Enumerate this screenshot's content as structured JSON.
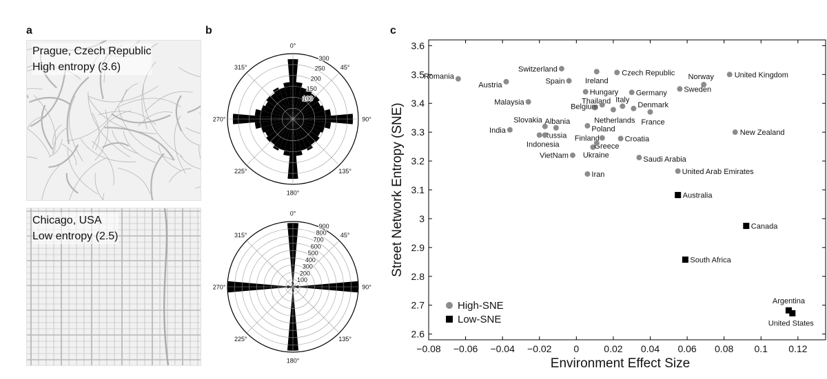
{
  "panels": {
    "a": {
      "letter": "a",
      "maps": [
        {
          "title": "Prague, Czech Republic",
          "subtitle": "High entropy (3.6)",
          "kind": "organic"
        },
        {
          "title": "Chicago, USA",
          "subtitle": "Low entropy (2.5)",
          "kind": "grid"
        }
      ]
    },
    "b": {
      "letter": "b",
      "angle_labels": [
        "0°",
        "45°",
        "90°",
        "135°",
        "180°",
        "225°",
        "270°",
        "315°"
      ],
      "polar_top": {
        "radial_ticks": [
          "100",
          "150",
          "200",
          "250",
          "300"
        ],
        "rmax": 300,
        "rings": [
          50,
          100,
          150,
          200,
          250,
          300
        ],
        "bins_deg": 10,
        "values": [
          275,
          170,
          150,
          160,
          145,
          150,
          140,
          150,
          175,
          275,
          175,
          150,
          140,
          150,
          145,
          160,
          150,
          170,
          275,
          170,
          150,
          160,
          145,
          150,
          140,
          150,
          175,
          275,
          175,
          150,
          140,
          150,
          145,
          160,
          150,
          170
        ]
      },
      "polar_bottom": {
        "radial_ticks": [
          "100",
          "200",
          "300",
          "400",
          "500",
          "600",
          "700",
          "800",
          "900"
        ],
        "rmax": 900,
        "rings": [
          100,
          200,
          300,
          400,
          500,
          600,
          700,
          800,
          900
        ],
        "bins_deg": 10,
        "values": [
          880,
          60,
          30,
          15,
          10,
          15,
          20,
          40,
          80,
          900,
          80,
          30,
          15,
          10,
          12,
          25,
          35,
          70,
          880,
          60,
          30,
          15,
          10,
          15,
          20,
          40,
          80,
          900,
          80,
          30,
          15,
          10,
          12,
          25,
          35,
          70
        ]
      }
    },
    "c": {
      "letter": "c"
    }
  },
  "chart_data": {
    "type": "scatter",
    "xlabel": "Environment Effect Size",
    "ylabel": "Street Network Entropy (SNE)",
    "xlim": [
      -0.08,
      0.135
    ],
    "ylim": [
      2.58,
      3.62
    ],
    "x_ticks": [
      -0.08,
      -0.06,
      -0.04,
      -0.02,
      0,
      0.02,
      0.04,
      0.06,
      0.08,
      0.1,
      0.12
    ],
    "x_tick_labels": [
      "−0.08",
      "−0.06",
      "−0.04",
      "−0.02",
      "0",
      "0.02",
      "0.04",
      "0.06",
      "0.08",
      "0.1",
      "0.12"
    ],
    "y_ticks": [
      2.6,
      2.7,
      2.8,
      2.9,
      3.0,
      3.1,
      3.2,
      3.3,
      3.4,
      3.5,
      3.6
    ],
    "y_tick_labels": [
      "2.6",
      "2.7",
      "2.8",
      "2.9",
      "3",
      "3.1",
      "3.2",
      "3.3",
      "3.4",
      "3.5",
      "3.6"
    ],
    "legend_placement": "bottom-left",
    "series": [
      {
        "name": "High-SNE",
        "marker": "circle",
        "color": "#8c8c8c",
        "points": [
          {
            "label": "Romania",
            "x": -0.064,
            "y": 3.485,
            "anchor": "end",
            "dx": -6,
            "dy": -4
          },
          {
            "label": "Austria",
            "x": -0.038,
            "y": 3.475,
            "anchor": "end",
            "dx": -6,
            "dy": 4
          },
          {
            "label": "Switzerland",
            "x": -0.008,
            "y": 3.52,
            "anchor": "end",
            "dx": -6,
            "dy": 0
          },
          {
            "label": "Spain",
            "x": -0.004,
            "y": 3.478,
            "anchor": "end",
            "dx": -6,
            "dy": 0
          },
          {
            "label": "Ireland",
            "x": 0.011,
            "y": 3.51,
            "anchor": "middle",
            "dx": 0,
            "dy": 13
          },
          {
            "label": "Czech Republic",
            "x": 0.022,
            "y": 3.507,
            "anchor": "start",
            "dx": 7,
            "dy": 0
          },
          {
            "label": "Norway",
            "x": 0.069,
            "y": 3.465,
            "anchor": "middle",
            "dx": -4,
            "dy": -12
          },
          {
            "label": "United Kingdom",
            "x": 0.083,
            "y": 3.5,
            "anchor": "start",
            "dx": 7,
            "dy": 0
          },
          {
            "label": "Sweden",
            "x": 0.056,
            "y": 3.45,
            "anchor": "start",
            "dx": 6,
            "dy": 0
          },
          {
            "label": "Malaysia",
            "x": -0.026,
            "y": 3.405,
            "anchor": "end",
            "dx": -6,
            "dy": 0
          },
          {
            "label": "Hungary",
            "x": 0.005,
            "y": 3.44,
            "anchor": "start",
            "dx": 6,
            "dy": 0
          },
          {
            "label": "Germany",
            "x": 0.03,
            "y": 3.438,
            "anchor": "start",
            "dx": 6,
            "dy": 0
          },
          {
            "label": "Thailand",
            "x": 0.01,
            "y": 3.385,
            "anchor": "middle",
            "dx": 2,
            "dy": -10
          },
          {
            "label": "Italy",
            "x": 0.025,
            "y": 3.39,
            "anchor": "middle",
            "dx": 0,
            "dy": -10
          },
          {
            "label": "Belgium",
            "x": 0.014,
            "y": 3.395,
            "anchor": "end",
            "dx": -6,
            "dy": 2
          },
          {
            "label": "Denmark",
            "x": 0.031,
            "y": 3.382,
            "anchor": "start",
            "dx": 6,
            "dy": -6
          },
          {
            "label": "France",
            "x": 0.04,
            "y": 3.37,
            "anchor": "middle",
            "dx": 4,
            "dy": 14
          },
          {
            "label": "Netherlands",
            "x": 0.02,
            "y": 3.378,
            "anchor": "middle",
            "dx": 2,
            "dy": 15
          },
          {
            "label": "Slovakia",
            "x": -0.017,
            "y": 3.32,
            "anchor": "end",
            "dx": -4,
            "dy": -10
          },
          {
            "label": "Albania",
            "x": -0.011,
            "y": 3.315,
            "anchor": "middle",
            "dx": 2,
            "dy": -10
          },
          {
            "label": "India",
            "x": -0.036,
            "y": 3.308,
            "anchor": "end",
            "dx": -6,
            "dy": 0
          },
          {
            "label": "Russia",
            "x": -0.02,
            "y": 3.29,
            "anchor": "start",
            "dx": 6,
            "dy": 0
          },
          {
            "label": "Poland",
            "x": 0.006,
            "y": 3.322,
            "anchor": "start",
            "dx": 6,
            "dy": 4
          },
          {
            "label": "Indonesia",
            "x": -0.017,
            "y": 3.29,
            "anchor": "middle",
            "dx": -3,
            "dy": 13
          },
          {
            "label": "Finland",
            "x": 0.014,
            "y": 3.28,
            "anchor": "end",
            "dx": -4,
            "dy": 0
          },
          {
            "label": "Croatia",
            "x": 0.024,
            "y": 3.278,
            "anchor": "start",
            "dx": 6,
            "dy": 0
          },
          {
            "label": "Greece",
            "x": 0.009,
            "y": 3.248,
            "anchor": "start",
            "dx": 2,
            "dy": -2
          },
          {
            "label": "VietNam",
            "x": -0.002,
            "y": 3.22,
            "anchor": "end",
            "dx": -6,
            "dy": 0
          },
          {
            "label": "Ukraine",
            "x": 0.011,
            "y": 3.262,
            "anchor": "middle",
            "dx": -1,
            "dy": 17
          },
          {
            "label": "Saudi Arabia",
            "x": 0.034,
            "y": 3.212,
            "anchor": "start",
            "dx": 6,
            "dy": 2
          },
          {
            "label": "United Arab Emirates",
            "x": 0.055,
            "y": 3.165,
            "anchor": "start",
            "dx": 6,
            "dy": 0
          },
          {
            "label": "Iran",
            "x": 0.006,
            "y": 3.155,
            "anchor": "start",
            "dx": 6,
            "dy": 0
          },
          {
            "label": "New Zealand",
            "x": 0.086,
            "y": 3.3,
            "anchor": "start",
            "dx": 7,
            "dy": 0
          }
        ]
      },
      {
        "name": "Low-SNE",
        "marker": "square",
        "color": "#000000",
        "points": [
          {
            "label": "Australia",
            "x": 0.055,
            "y": 3.082,
            "anchor": "start",
            "dx": 7,
            "dy": 0
          },
          {
            "label": "Canada",
            "x": 0.092,
            "y": 2.975,
            "anchor": "start",
            "dx": 7,
            "dy": 0
          },
          {
            "label": "South Africa",
            "x": 0.059,
            "y": 2.858,
            "anchor": "start",
            "dx": 7,
            "dy": 0
          },
          {
            "label": "Argentina",
            "x": 0.115,
            "y": 2.682,
            "anchor": "middle",
            "dx": 0,
            "dy": -14
          },
          {
            "label": "United States",
            "x": 0.117,
            "y": 2.672,
            "anchor": "middle",
            "dx": -2,
            "dy": 14
          }
        ]
      }
    ]
  }
}
